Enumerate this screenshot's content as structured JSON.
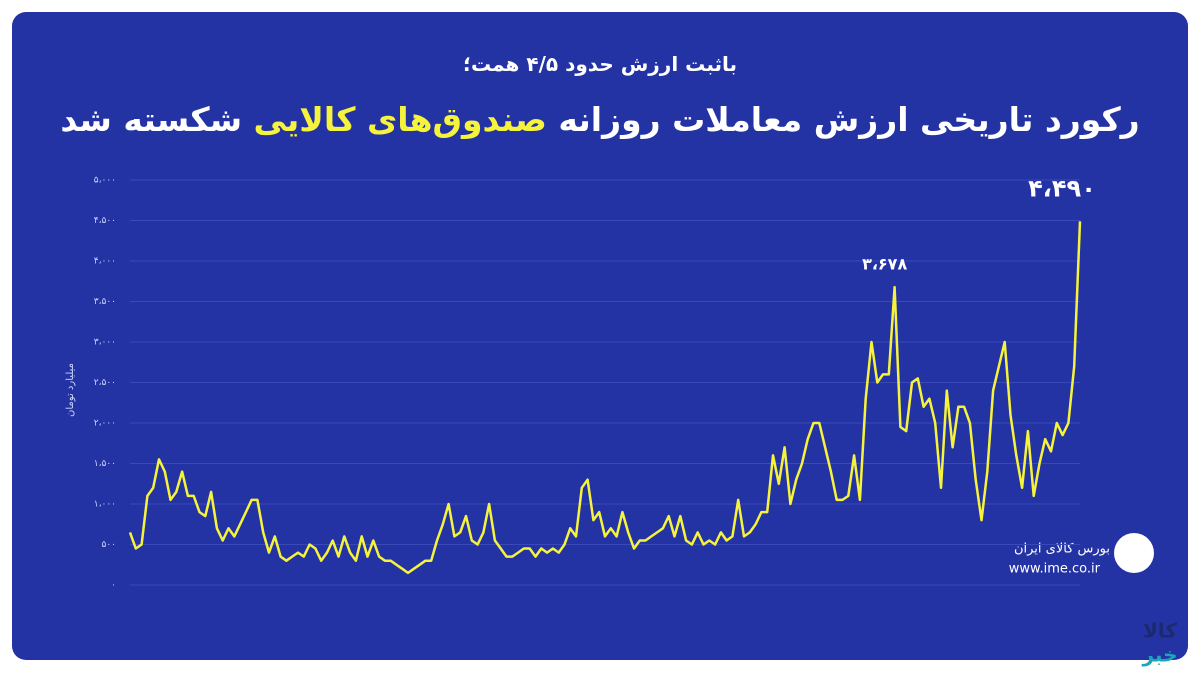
{
  "chart_data": {
    "type": "line",
    "subtitle": "باثبت ارزش حدود ۴/۵ همت؛",
    "title_parts": [
      "رکورد تاریخی ارزش معاملات روزانه",
      "صندوق‌های کالایی",
      "شکسته شد"
    ],
    "title_highlight_color": "#f6f33c",
    "y_label": "میلیارد تومان",
    "ylim": [
      0,
      5000
    ],
    "yticks": [
      {
        "value": 0,
        "label": "۰"
      },
      {
        "value": 500,
        "label": "۵۰۰"
      },
      {
        "value": 1000,
        "label": "۱،۰۰۰"
      },
      {
        "value": 1500,
        "label": "۱،۵۰۰"
      },
      {
        "value": 2000,
        "label": "۲،۰۰۰"
      },
      {
        "value": 2500,
        "label": "۲،۵۰۰"
      },
      {
        "value": 3000,
        "label": "۳،۰۰۰"
      },
      {
        "value": 3500,
        "label": "۳،۵۰۰"
      },
      {
        "value": 4000,
        "label": "۴،۰۰۰"
      },
      {
        "value": 4500,
        "label": "۴،۵۰۰"
      },
      {
        "value": 5000,
        "label": "۵،۰۰۰"
      }
    ],
    "grid": true,
    "series": [
      {
        "color": "#f6f33c",
        "values": [
          650,
          450,
          500,
          1100,
          1200,
          1550,
          1400,
          1050,
          1150,
          1400,
          1100,
          1100,
          900,
          850,
          1150,
          700,
          550,
          700,
          600,
          750,
          900,
          1050,
          1050,
          650,
          400,
          600,
          350,
          300,
          350,
          400,
          350,
          500,
          450,
          300,
          400,
          550,
          350,
          600,
          400,
          300,
          600,
          350,
          550,
          350,
          300,
          300,
          250,
          200,
          150,
          200,
          250,
          300,
          300,
          550,
          750,
          1000,
          600,
          650,
          850,
          550,
          500,
          650,
          1000,
          550,
          450,
          350,
          350,
          400,
          450,
          450,
          350,
          450,
          400,
          450,
          400,
          500,
          700,
          600,
          1200,
          1300,
          800,
          900,
          600,
          700,
          600,
          900,
          650,
          450,
          550,
          550,
          600,
          650,
          700,
          850,
          600,
          850,
          550,
          500,
          650,
          500,
          550,
          500,
          650,
          550,
          600,
          1050,
          600,
          650,
          750,
          900,
          900,
          1600,
          1250,
          1700,
          1000,
          1300,
          1500,
          1800,
          2000,
          2000,
          1700,
          1400,
          1050,
          1050,
          1100,
          1600,
          1050,
          2300,
          3000,
          2500,
          2600,
          2600,
          3678,
          1950,
          1900,
          2500,
          2550,
          2200,
          2300,
          2000,
          1200,
          2400,
          1700,
          2200,
          2200,
          2000,
          1300,
          800,
          1400,
          2400,
          2700,
          3000,
          2100,
          1600,
          1200,
          1900,
          1100,
          1500,
          1800,
          1650,
          2000,
          1850,
          2000,
          2700,
          4490
        ]
      }
    ],
    "annotations": [
      {
        "text": "۳،۶۷۸",
        "value": 3678
      },
      {
        "text": "۴،۴۹۰",
        "value": 4490
      }
    ],
    "source": {
      "name": "بورس کالای ایران",
      "url": "www.ime.co.ir"
    },
    "watermark": [
      "کالا",
      "خبر"
    ]
  }
}
